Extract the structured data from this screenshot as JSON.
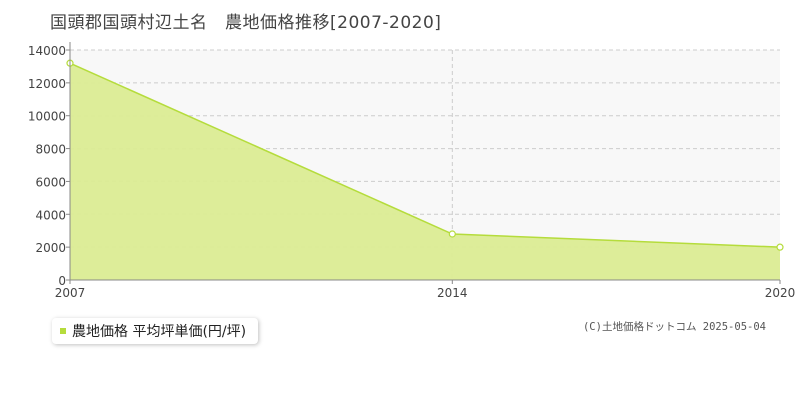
{
  "title": "国頭郡国頭村辺土名　農地価格推移[2007-2020]",
  "legend_label": "農地価格 平均坪単価(円/坪)",
  "copyright": "(C)土地価格ドットコム 2025-05-04",
  "colors": {
    "fill": "#dbec94",
    "line": "#b5dc3c",
    "grid": "#cccccc"
  },
  "chart_data": {
    "type": "area",
    "x": [
      2007,
      2014,
      2020
    ],
    "series": [
      {
        "name": "農地価格 平均坪単価(円/坪)",
        "values": [
          13200,
          2800,
          2000
        ]
      }
    ],
    "xlim": [
      2007,
      2020
    ],
    "ylim": [
      0,
      14000
    ],
    "yticks": [
      0,
      2000,
      4000,
      6000,
      8000,
      10000,
      12000,
      14000
    ],
    "xticks": [
      2007,
      2014,
      2020
    ],
    "grid": true,
    "legend": "bottom-left"
  }
}
